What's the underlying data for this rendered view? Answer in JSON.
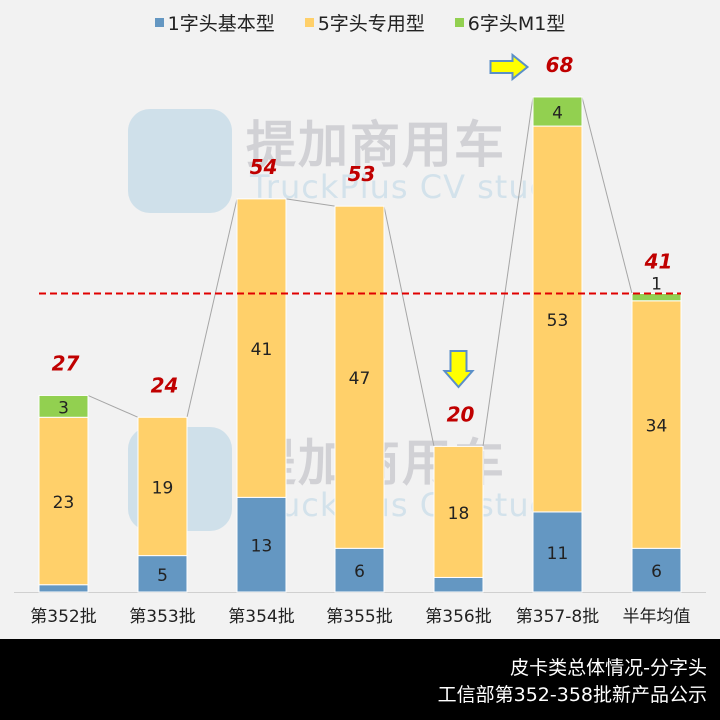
{
  "chart_data": {
    "type": "bar",
    "stacked": true,
    "title": "",
    "xlabel": "",
    "ylabel": "",
    "categories": [
      "第352批",
      "第353批",
      "第354批",
      "第355批",
      "第356批",
      "第357-8批",
      "半年均值"
    ],
    "series": [
      {
        "name": "1字头基本型",
        "color": "#6497c2",
        "values": [
          1,
          5,
          13,
          6,
          2,
          11,
          6
        ]
      },
      {
        "name": "5字头专用型",
        "color": "#ffd06a",
        "values": [
          23,
          19,
          41,
          47,
          18,
          53,
          34
        ]
      },
      {
        "name": "6字头M1型",
        "color": "#92d050",
        "values": [
          3,
          0,
          0,
          0,
          0,
          4,
          1
        ]
      }
    ],
    "totals": [
      27,
      24,
      54,
      53,
      20,
      68,
      41
    ],
    "reference_line": {
      "value": 41,
      "style": "dashed",
      "color": "#e00000",
      "label": "半年均值"
    },
    "annotations": [
      {
        "type": "arrow-right",
        "target": "第357-8批",
        "color": "#ffff00"
      },
      {
        "type": "arrow-down",
        "target": "第356批",
        "color": "#ffff00"
      }
    ],
    "ylim": [
      0,
      81
    ],
    "grid": false,
    "legend_position": "top"
  },
  "legend": {
    "items": [
      {
        "label": "1字头基本型",
        "color": "#6497c2"
      },
      {
        "label": "5字头专用型",
        "color": "#ffd06a"
      },
      {
        "label": "6字头M1型",
        "color": "#92d050"
      }
    ]
  },
  "watermark": {
    "cn": "提加商用车",
    "en": "TruckPlus CV studio"
  },
  "footer": {
    "line1": "皮卡类总体情况-分字头",
    "line2": "工信部第352-358批新产品公示"
  }
}
